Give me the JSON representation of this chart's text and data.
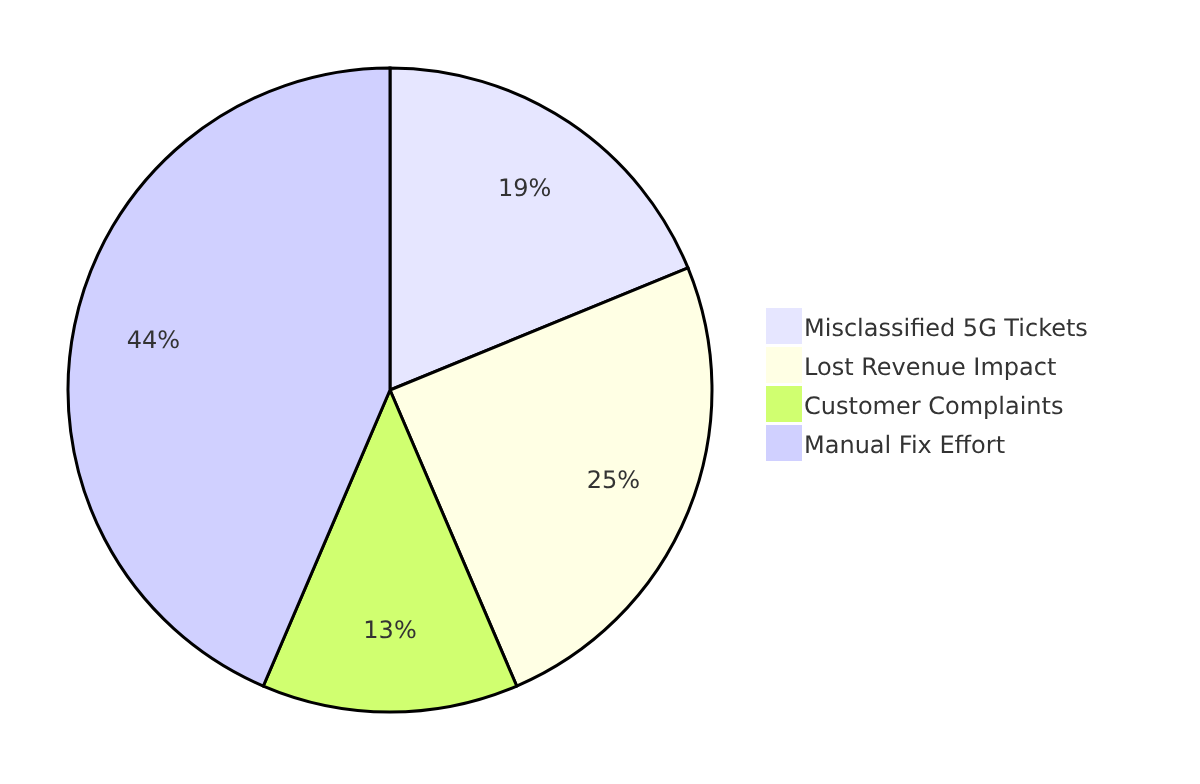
{
  "chart_data": {
    "type": "pie",
    "categories": [
      "Misclassified 5G Tickets",
      "Lost Revenue Impact",
      "Customer Complaints",
      "Manual Fix Effort"
    ],
    "values": [
      19,
      25,
      13,
      44
    ],
    "value_labels": [
      "19%",
      "25%",
      "13%",
      "44%"
    ],
    "colors": [
      "#e6e6ff",
      "#ffffe4",
      "#d0ff70",
      "#d0d0ff"
    ],
    "legend": "right"
  }
}
